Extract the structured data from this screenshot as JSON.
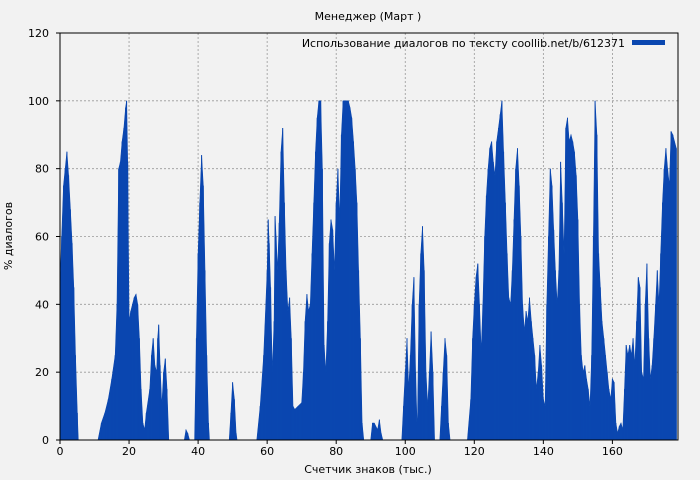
{
  "chart_data": {
    "type": "area",
    "title": "Менеджер (Март )",
    "xlabel": "Счетчик знаков (тыс.)",
    "ylabel": "% диалогов",
    "xlim": [
      0,
      179
    ],
    "ylim": [
      0,
      120
    ],
    "xticks": [
      0,
      20,
      40,
      60,
      80,
      100,
      120,
      140,
      160
    ],
    "yticks": [
      0,
      20,
      40,
      60,
      80,
      100,
      120
    ],
    "grid": true,
    "legend_position": "top-right",
    "series": [
      {
        "name": "Использование диалогов по тексту coollib.net/b/612371",
        "color": "#0a47b0",
        "points": [
          [
            0,
            45
          ],
          [
            0.5,
            60
          ],
          [
            1,
            75
          ],
          [
            1.5,
            80
          ],
          [
            2,
            85
          ],
          [
            2.5,
            78
          ],
          [
            3,
            68
          ],
          [
            3.5,
            58
          ],
          [
            4,
            45
          ],
          [
            4.5,
            25
          ],
          [
            5,
            8
          ],
          [
            5.3,
            0
          ],
          [
            11,
            0
          ],
          [
            12,
            5
          ],
          [
            13,
            8
          ],
          [
            14,
            12
          ],
          [
            15,
            18
          ],
          [
            16,
            25
          ],
          [
            16.5,
            40
          ],
          [
            17,
            80
          ],
          [
            17.5,
            82
          ],
          [
            18,
            88
          ],
          [
            18.5,
            92
          ],
          [
            19,
            98
          ],
          [
            19.3,
            100
          ],
          [
            19.6,
            82
          ],
          [
            20,
            35
          ],
          [
            20.5,
            38
          ],
          [
            21,
            40
          ],
          [
            21.5,
            42
          ],
          [
            22,
            43
          ],
          [
            22.5,
            40
          ],
          [
            23,
            30
          ],
          [
            23.5,
            15
          ],
          [
            24,
            5
          ],
          [
            24.5,
            3
          ],
          [
            25,
            8
          ],
          [
            26,
            15
          ],
          [
            26.5,
            25
          ],
          [
            27,
            30
          ],
          [
            27.5,
            22
          ],
          [
            28,
            20
          ],
          [
            28.3,
            30
          ],
          [
            28.6,
            34
          ],
          [
            29,
            22
          ],
          [
            29.5,
            10
          ],
          [
            30,
            20
          ],
          [
            30.5,
            24
          ],
          [
            31,
            15
          ],
          [
            31.5,
            0
          ],
          [
            36,
            0
          ],
          [
            36.5,
            3
          ],
          [
            37,
            2
          ],
          [
            37.5,
            0
          ],
          [
            39,
            0
          ],
          [
            39.5,
            30
          ],
          [
            40,
            55
          ],
          [
            40.5,
            70
          ],
          [
            41,
            84
          ],
          [
            41.5,
            75
          ],
          [
            42,
            50
          ],
          [
            42.5,
            25
          ],
          [
            43,
            5
          ],
          [
            43.3,
            0
          ],
          [
            49,
            0
          ],
          [
            49.5,
            8
          ],
          [
            50,
            17
          ],
          [
            50.5,
            12
          ],
          [
            51,
            2
          ],
          [
            51.3,
            0
          ],
          [
            57,
            0
          ],
          [
            58,
            10
          ],
          [
            59,
            25
          ],
          [
            60,
            50
          ],
          [
            60.3,
            65
          ],
          [
            60.6,
            58
          ],
          [
            61,
            45
          ],
          [
            61.5,
            20
          ],
          [
            62,
            35
          ],
          [
            62.3,
            66
          ],
          [
            62.6,
            60
          ],
          [
            63,
            50
          ],
          [
            63.5,
            64
          ],
          [
            64,
            85
          ],
          [
            64.5,
            92
          ],
          [
            65,
            70
          ],
          [
            65.5,
            50
          ],
          [
            66,
            38
          ],
          [
            66.5,
            42
          ],
          [
            67,
            30
          ],
          [
            67.5,
            10
          ],
          [
            68,
            9
          ],
          [
            69,
            10
          ],
          [
            70,
            11
          ],
          [
            70.5,
            20
          ],
          [
            71,
            35
          ],
          [
            71.5,
            43
          ],
          [
            72,
            38
          ],
          [
            72.5,
            40
          ],
          [
            73,
            55
          ],
          [
            73.5,
            70
          ],
          [
            74,
            85
          ],
          [
            74.5,
            95
          ],
          [
            75,
            100
          ],
          [
            75.5,
            100
          ],
          [
            76,
            80
          ],
          [
            76.5,
            28
          ],
          [
            77,
            20
          ],
          [
            77.5,
            35
          ],
          [
            78,
            58
          ],
          [
            78.5,
            65
          ],
          [
            79,
            62
          ],
          [
            79.5,
            50
          ],
          [
            80,
            70
          ],
          [
            80.5,
            80
          ],
          [
            81,
            65
          ],
          [
            81.5,
            90
          ],
          [
            82,
            100
          ],
          [
            82.5,
            100
          ],
          [
            83,
            100
          ],
          [
            83.5,
            100
          ],
          [
            84,
            98
          ],
          [
            84.5,
            95
          ],
          [
            85,
            88
          ],
          [
            85.5,
            80
          ],
          [
            86,
            70
          ],
          [
            86.5,
            50
          ],
          [
            87,
            30
          ],
          [
            87.5,
            5
          ],
          [
            88,
            0
          ],
          [
            90,
            0
          ],
          [
            90.5,
            5
          ],
          [
            91,
            5
          ],
          [
            92,
            3
          ],
          [
            92.5,
            6
          ],
          [
            93,
            2
          ],
          [
            93.5,
            0
          ],
          [
            99,
            0
          ],
          [
            99.5,
            10
          ],
          [
            100,
            20
          ],
          [
            100.5,
            30
          ],
          [
            101,
            15
          ],
          [
            101.5,
            25
          ],
          [
            102,
            40
          ],
          [
            102.5,
            48
          ],
          [
            103,
            20
          ],
          [
            103.5,
            2
          ],
          [
            104,
            40
          ],
          [
            104.5,
            55
          ],
          [
            105,
            63
          ],
          [
            105.5,
            50
          ],
          [
            106,
            20
          ],
          [
            106.5,
            10
          ],
          [
            107,
            20
          ],
          [
            107.5,
            32
          ],
          [
            108,
            20
          ],
          [
            108.5,
            0
          ],
          [
            110,
            0
          ],
          [
            110.5,
            10
          ],
          [
            111,
            20
          ],
          [
            111.5,
            30
          ],
          [
            112,
            25
          ],
          [
            112.5,
            5
          ],
          [
            113,
            0
          ],
          [
            118,
            0
          ],
          [
            119,
            12
          ],
          [
            119.5,
            30
          ],
          [
            120,
            40
          ],
          [
            120.5,
            48
          ],
          [
            121,
            52
          ],
          [
            121.5,
            40
          ],
          [
            122,
            26
          ],
          [
            122.5,
            40
          ],
          [
            123,
            60
          ],
          [
            123.5,
            72
          ],
          [
            124,
            80
          ],
          [
            124.5,
            86
          ],
          [
            125,
            88
          ],
          [
            125.5,
            82
          ],
          [
            126,
            78
          ],
          [
            126.5,
            88
          ],
          [
            127,
            92
          ],
          [
            127.5,
            96
          ],
          [
            128,
            100
          ],
          [
            128.5,
            85
          ],
          [
            129,
            70
          ],
          [
            129.5,
            55
          ],
          [
            130,
            42
          ],
          [
            130.5,
            40
          ],
          [
            131,
            50
          ],
          [
            131.5,
            65
          ],
          [
            132,
            80
          ],
          [
            132.5,
            86
          ],
          [
            133,
            75
          ],
          [
            133.5,
            60
          ],
          [
            134,
            40
          ],
          [
            134.5,
            32
          ],
          [
            135,
            38
          ],
          [
            135.5,
            35
          ],
          [
            136,
            42
          ],
          [
            136.5,
            35
          ],
          [
            137,
            30
          ],
          [
            137.5,
            25
          ],
          [
            138,
            15
          ],
          [
            138.5,
            20
          ],
          [
            139,
            28
          ],
          [
            139.5,
            22
          ],
          [
            140,
            12
          ],
          [
            140.5,
            10
          ],
          [
            141,
            40
          ],
          [
            141.5,
            60
          ],
          [
            142,
            80
          ],
          [
            142.5,
            75
          ],
          [
            143,
            62
          ],
          [
            143.5,
            50
          ],
          [
            144,
            40
          ],
          [
            144.5,
            50
          ],
          [
            145,
            82
          ],
          [
            145.5,
            70
          ],
          [
            146,
            55
          ],
          [
            146.5,
            92
          ],
          [
            147,
            95
          ],
          [
            147.5,
            88
          ],
          [
            148,
            90
          ],
          [
            148.5,
            88
          ],
          [
            149,
            85
          ],
          [
            149.5,
            78
          ],
          [
            150,
            65
          ],
          [
            150.5,
            40
          ],
          [
            151,
            25
          ],
          [
            151.5,
            20
          ],
          [
            152,
            22
          ],
          [
            152.5,
            18
          ],
          [
            153,
            15
          ],
          [
            153.5,
            10
          ],
          [
            154,
            25
          ],
          [
            154.5,
            60
          ],
          [
            155,
            100
          ],
          [
            155.5,
            90
          ],
          [
            156,
            55
          ],
          [
            156.5,
            45
          ],
          [
            157,
            35
          ],
          [
            157.5,
            30
          ],
          [
            158,
            25
          ],
          [
            158.5,
            20
          ],
          [
            159,
            15
          ],
          [
            159.5,
            12
          ],
          [
            160,
            18
          ],
          [
            160.5,
            17
          ],
          [
            161,
            5
          ],
          [
            161.5,
            2
          ],
          [
            162,
            4
          ],
          [
            162.5,
            5
          ],
          [
            163,
            3
          ],
          [
            163.5,
            15
          ],
          [
            164,
            28
          ],
          [
            164.5,
            25
          ],
          [
            165,
            28
          ],
          [
            165.5,
            25
          ],
          [
            166,
            30
          ],
          [
            166.5,
            22
          ],
          [
            167,
            35
          ],
          [
            167.5,
            48
          ],
          [
            168,
            45
          ],
          [
            168.5,
            20
          ],
          [
            169,
            18
          ],
          [
            169.5,
            40
          ],
          [
            170,
            52
          ],
          [
            170.5,
            30
          ],
          [
            171,
            18
          ],
          [
            171.5,
            22
          ],
          [
            172,
            30
          ],
          [
            172.5,
            40
          ],
          [
            173,
            50
          ],
          [
            173.5,
            40
          ],
          [
            174,
            55
          ],
          [
            174.5,
            70
          ],
          [
            175,
            80
          ],
          [
            175.5,
            86
          ],
          [
            176,
            80
          ],
          [
            176.5,
            75
          ],
          [
            177,
            91
          ],
          [
            177.5,
            90
          ],
          [
            178,
            88
          ],
          [
            178.5,
            86
          ]
        ]
      }
    ]
  }
}
